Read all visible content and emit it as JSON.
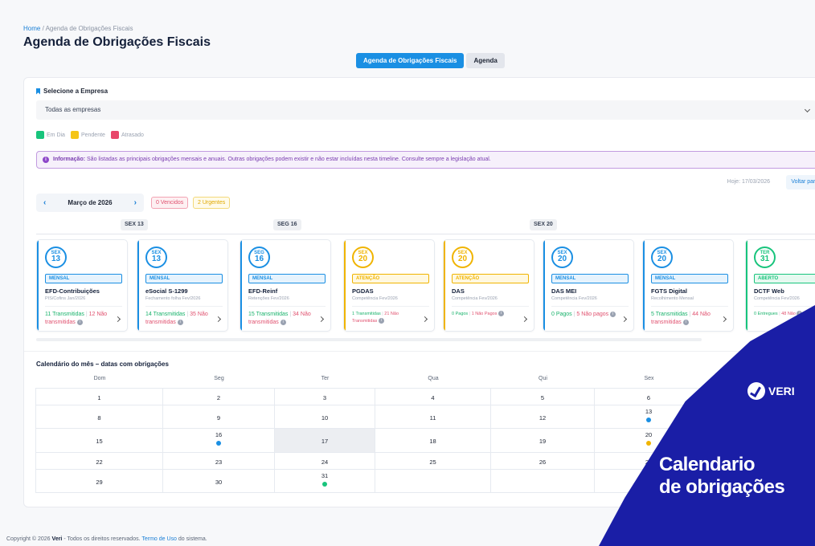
{
  "breadcrumb": {
    "home": "Home",
    "sep": "/",
    "current": "Agenda de Obrigações Fiscais"
  },
  "page_title": "Agenda de Obrigações Fiscais",
  "tabs": [
    {
      "label": "Agenda de Obrigações Fiscais",
      "active": true
    },
    {
      "label": "Agenda",
      "active": false
    }
  ],
  "company": {
    "label": "Selecione a Empresa",
    "value": "Todas as empresas"
  },
  "legend": [
    {
      "label": "Em Dia",
      "color": "#18c47c"
    },
    {
      "label": "Pendente",
      "color": "#f5c518"
    },
    {
      "label": "Atrasado",
      "color": "#e8466a"
    }
  ],
  "info": {
    "title": "Informação:",
    "text": "São listadas as principais obrigações mensais e anuais. Outras obrigações podem existir e não estar incluídas nesta timeline. Consulte sempre a legislação atual."
  },
  "today_label": "Hoje: 17/03/2026",
  "back_today": "Voltar para Hoje",
  "month": {
    "prev": "‹",
    "label": "Março de 2026",
    "next": "›"
  },
  "pills": {
    "vencidos": "0 Vencidos",
    "urgentes": "2 Urgentes"
  },
  "day_labels": [
    "SEX 13",
    "SEG 16",
    "SEX 20"
  ],
  "cards": [
    {
      "dw": "SEX",
      "dn": "13",
      "badge": "MENSAL",
      "name": "EFD-Contribuições",
      "sub": "PIS/Cofins Jan/2026",
      "ok": "11 Transmitidas",
      "sep": "|",
      "bad": "12 Não transmitidas",
      "color": "#1a8fe3",
      "badge_bg": "#e6f3fd"
    },
    {
      "dw": "SEX",
      "dn": "13",
      "badge": "MENSAL",
      "name": "eSocial S-1299",
      "sub": "Fechamento folha Fev/2026",
      "ok": "14 Transmitidas",
      "sep": "|",
      "bad": "35 Não transmitidas",
      "color": "#1a8fe3",
      "badge_bg": "#e6f3fd"
    },
    {
      "dw": "SEG",
      "dn": "16",
      "badge": "MENSAL",
      "name": "EFD-Reinf",
      "sub": "Retenções Fev/2026",
      "ok": "15 Transmitidas",
      "sep": "|",
      "bad": "34 Não transmitidas",
      "color": "#1a8fe3",
      "badge_bg": "#e6f3fd"
    },
    {
      "dw": "SEX",
      "dn": "20",
      "badge": "ATENÇÃO",
      "name": "PGDAS",
      "sub": "Competência Fev/2026",
      "ok": "1 Transmitidas",
      "sep": "|",
      "bad": "21 Não Transmitidas",
      "color": "#f0b400",
      "badge_bg": "#fff8e0",
      "small": true
    },
    {
      "dw": "SEX",
      "dn": "20",
      "badge": "ATENÇÃO",
      "name": "DAS",
      "sub": "Competência Fev/2026",
      "ok": "0 Pagos",
      "sep": "|",
      "bad": "1 Não Pagos",
      "color": "#f0b400",
      "badge_bg": "#fff8e0",
      "small": true
    },
    {
      "dw": "SEX",
      "dn": "20",
      "badge": "MENSAL",
      "name": "DAS MEI",
      "sub": "Competência Fev/2026",
      "ok": "0 Pagos",
      "sep": "|",
      "bad": "5 Não pagos",
      "color": "#1a8fe3",
      "badge_bg": "#e6f3fd"
    },
    {
      "dw": "SEX",
      "dn": "20",
      "badge": "MENSAL",
      "name": "FGTS Digital",
      "sub": "Recolhimento Mensal",
      "ok": "5 Transmitidas",
      "sep": "|",
      "bad": "44 Não transmitidas",
      "color": "#1a8fe3",
      "badge_bg": "#e6f3fd"
    },
    {
      "dw": "TER",
      "dn": "31",
      "badge": "ABERTO",
      "name": "DCTF Web",
      "sub": "Competência Fev/2026",
      "ok": "0 Entregues",
      "sep": "|",
      "bad": "48 Não",
      "color": "#18c47c",
      "badge_bg": "#e6f9f0",
      "small": true
    }
  ],
  "calendar": {
    "title": "Calendário do mês – datas com obrigações",
    "weekdays": [
      "Dom",
      "Seg",
      "Ter",
      "Qua",
      "Qui",
      "Sex"
    ],
    "rows": [
      [
        {
          "d": "1"
        },
        {
          "d": "2"
        },
        {
          "d": "3"
        },
        {
          "d": "4"
        },
        {
          "d": "5"
        },
        {
          "d": "6"
        }
      ],
      [
        {
          "d": "8"
        },
        {
          "d": "9"
        },
        {
          "d": "10"
        },
        {
          "d": "11"
        },
        {
          "d": "12"
        },
        {
          "d": "13",
          "dot": "#1a8fe3"
        }
      ],
      [
        {
          "d": "15"
        },
        {
          "d": "16",
          "dot": "#1a8fe3"
        },
        {
          "d": "17",
          "today": true
        },
        {
          "d": "18"
        },
        {
          "d": "19"
        },
        {
          "d": "20",
          "dot": "#f0b400"
        }
      ],
      [
        {
          "d": "22"
        },
        {
          "d": "23"
        },
        {
          "d": "24"
        },
        {
          "d": "25"
        },
        {
          "d": "26"
        },
        {
          "d": "27"
        }
      ],
      [
        {
          "d": "29"
        },
        {
          "d": "30"
        },
        {
          "d": "31",
          "dot": "#18c47c"
        },
        {
          "d": ""
        },
        {
          "d": ""
        },
        {
          "d": ""
        }
      ]
    ]
  },
  "footer": {
    "prefix": "Copyright © 2026",
    "brand": "Veri",
    "middle": "- Todos os direitos reservados.",
    "link": "Termo de Uso",
    "suffix": "do sistema."
  },
  "promo": {
    "logo": "VERI",
    "line1": "Calendario",
    "line2": "de obrigações"
  }
}
